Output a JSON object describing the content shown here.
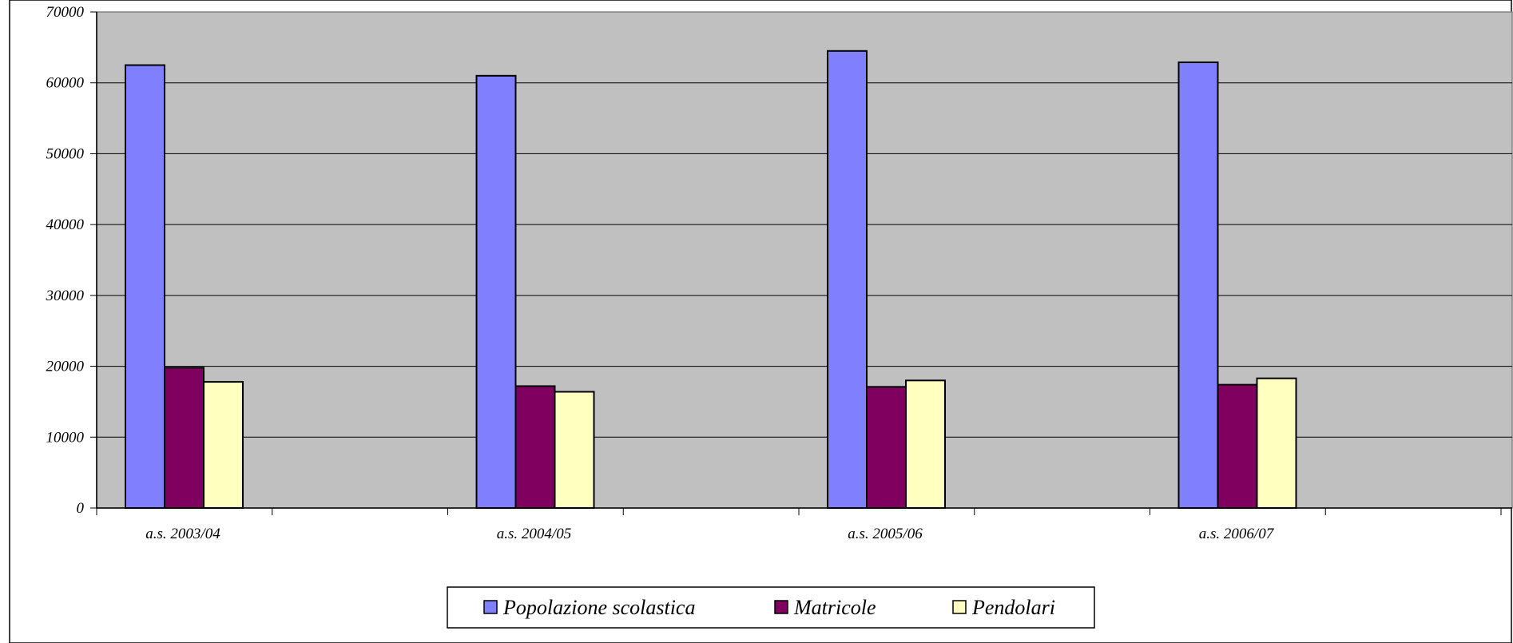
{
  "chart_data": {
    "type": "bar",
    "categories": [
      "a.s. 2003/04",
      "a.s. 2004/05",
      "a.s. 2005/06",
      "a.s. 2006/07"
    ],
    "series": [
      {
        "name": "Popolazione scolastica",
        "values": [
          62500,
          61000,
          64500,
          62900
        ],
        "color": "#8080ff"
      },
      {
        "name": "Matricole",
        "values": [
          19800,
          17200,
          17100,
          17400
        ],
        "color": "#800060"
      },
      {
        "name": "Pendolari",
        "values": [
          17800,
          16400,
          18000,
          18300
        ],
        "color": "#ffffc0"
      }
    ],
    "ylim": [
      0,
      70000
    ],
    "yticks": [
      0,
      10000,
      20000,
      30000,
      40000,
      50000,
      60000,
      70000
    ],
    "ytick_labels": [
      "0",
      "10000",
      "20000",
      "30000",
      "40000",
      "50000",
      "60000",
      "70000"
    ],
    "grid": true,
    "plot_background": "#c0c0c0",
    "legend_position": "bottom-center"
  }
}
